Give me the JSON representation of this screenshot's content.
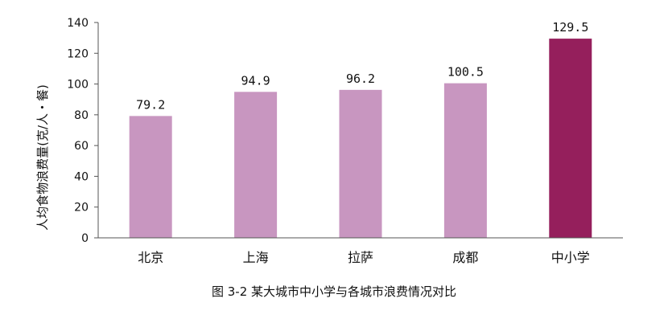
{
  "chart_data": {
    "type": "bar",
    "categories": [
      "北京",
      "上海",
      "拉萨",
      "成都",
      "中小学"
    ],
    "values": [
      79.2,
      94.9,
      96.2,
      100.5,
      129.5
    ],
    "value_labels": [
      "79.2",
      "94.9",
      "96.2",
      "100.5",
      "129.5"
    ],
    "ylabel": "人均食物浪费量(克/人・餐)",
    "xlabel": "",
    "ylim": [
      0,
      140
    ],
    "yticks": [
      0,
      20,
      40,
      60,
      80,
      100,
      120,
      140
    ],
    "grid": false,
    "legend": "none",
    "colors": {
      "default_bar": "#c896c0",
      "highlight_bar": "#951f5c",
      "axis": "#555555",
      "text": "#111111"
    },
    "highlight_index": 4
  },
  "caption": "图 3-2 某大城市中小学与各城市浪费情况对比"
}
